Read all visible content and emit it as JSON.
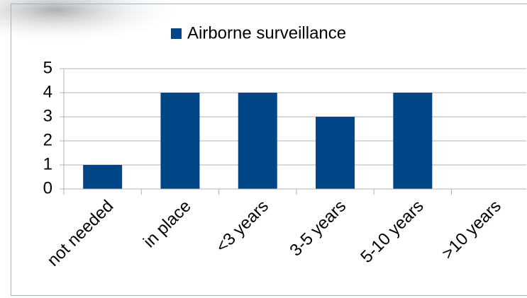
{
  "chart_data": {
    "type": "bar",
    "categories": [
      "not needed",
      "in place",
      "<3 years",
      "3-5 years",
      "5-10 years",
      ">10 years"
    ],
    "series": [
      {
        "name": "Airborne surveillance",
        "color": "#004586",
        "values": [
          1,
          4,
          4,
          3,
          4,
          0
        ]
      }
    ],
    "ylim": [
      0,
      5
    ],
    "yticks": [
      0,
      1,
      2,
      3,
      4,
      5
    ],
    "grid": true,
    "legend": "top"
  }
}
